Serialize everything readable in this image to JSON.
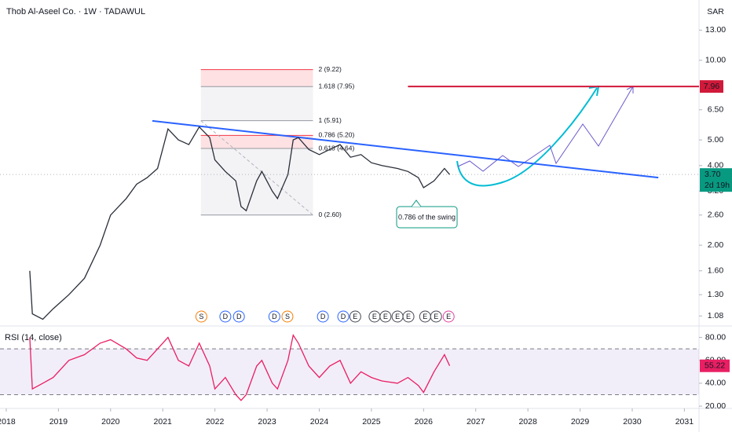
{
  "chart_data": [
    {
      "type": "line",
      "title": "Thob Al-Aseel Co. · 1W · TADAWUL",
      "currency": "SAR",
      "log_scale": true,
      "grid": false,
      "color": "#2a2e39",
      "x": [
        2018.45,
        2018.5,
        2018.7,
        2018.9,
        2019.2,
        2019.5,
        2019.8,
        2020.0,
        2020.3,
        2020.5,
        2020.7,
        2020.9,
        2021.1,
        2021.3,
        2021.5,
        2021.7,
        2021.9,
        2022.0,
        2022.2,
        2022.4,
        2022.5,
        2022.6,
        2022.8,
        2022.9,
        2023.1,
        2023.2,
        2023.4,
        2023.5,
        2023.6,
        2023.8,
        2024.0,
        2024.2,
        2024.4,
        2024.6,
        2024.8,
        2025.0,
        2025.2,
        2025.5,
        2025.7,
        2025.9,
        2026.0,
        2026.2,
        2026.4,
        2026.5
      ],
      "values": [
        1.6,
        1.1,
        1.05,
        1.15,
        1.3,
        1.5,
        2.0,
        2.6,
        3.0,
        3.4,
        3.6,
        3.9,
        5.5,
        5.0,
        4.8,
        5.6,
        5.1,
        4.2,
        3.8,
        3.5,
        2.8,
        2.7,
        3.5,
        3.8,
        3.2,
        3.0,
        3.7,
        5.0,
        5.1,
        4.6,
        4.4,
        4.6,
        4.8,
        4.3,
        4.4,
        4.1,
        4.0,
        3.9,
        3.8,
        3.6,
        3.3,
        3.5,
        3.9,
        3.7
      ],
      "xlim": [
        2017.88,
        2031.28
      ],
      "xticks": [
        2018,
        2019,
        2020,
        2021,
        2022,
        2023,
        2024,
        2025,
        2026,
        2027,
        2028,
        2029,
        2030,
        2031
      ],
      "ylim": [
        0.99,
        16.9
      ],
      "yticks": [
        {
          "value": 13,
          "label": "13.00"
        },
        {
          "value": 10,
          "label": "10.00"
        },
        {
          "value": 6.5,
          "label": "6.50"
        },
        {
          "value": 5,
          "label": "5.00"
        },
        {
          "value": 4,
          "label": "4.00"
        },
        {
          "value": 3.2,
          "label": "3.20"
        },
        {
          "value": 2.6,
          "label": "2.60"
        },
        {
          "value": 2,
          "label": "2.00"
        },
        {
          "value": 1.6,
          "label": "1.60"
        },
        {
          "value": 1.3,
          "label": "1.30"
        },
        {
          "value": 1.08,
          "label": "1.08"
        }
      ],
      "fib": {
        "x": [
          2021.73,
          2023.88
        ],
        "levels": [
          {
            "value": 9.22,
            "label": "2 (9.22)",
            "color": "#f23645"
          },
          {
            "value": 7.95,
            "label": "1.618 (7.95)",
            "color": "#9598a1"
          },
          {
            "value": 5.91,
            "label": "1 (5.91)",
            "color": "#9598a1"
          },
          {
            "value": 5.2,
            "label": "0.786 (5.20)",
            "color": "#f23645"
          },
          {
            "value": 4.64,
            "label": "0.618 (4.64)",
            "color": "#9598a1"
          },
          {
            "value": 2.6,
            "label": "0 (2.60)",
            "color": "#9598a1"
          }
        ]
      },
      "trendline": {
        "x": [
          2020.8,
          2030.5
        ],
        "values": [
          5.9,
          3.6
        ],
        "color": "#2962ff"
      },
      "target": {
        "x": 2025.7,
        "value": 7.96,
        "label": "7.96",
        "color": "#d1193a"
      },
      "last": {
        "value": 3.7,
        "label": "3.70",
        "countdown": "2d 19h",
        "color": "#089981"
      },
      "annotation": "0.786 of the swing",
      "events": [
        {
          "x": 2021.74,
          "label": "S",
          "color": "#f57c00"
        },
        {
          "x": 2022.2,
          "label": "D",
          "color": "#2962ff"
        },
        {
          "x": 2022.46,
          "label": "D",
          "color": "#2962ff"
        },
        {
          "x": 2023.14,
          "label": "D",
          "color": "#2962ff"
        },
        {
          "x": 2023.39,
          "label": "S",
          "color": "#f57c00"
        },
        {
          "x": 2024.07,
          "label": "D",
          "color": "#2962ff"
        },
        {
          "x": 2024.46,
          "label": "D",
          "color": "#2962ff"
        },
        {
          "x": 2024.69,
          "label": "E",
          "color": "#434651"
        },
        {
          "x": 2025.06,
          "label": "E",
          "color": "#434651"
        },
        {
          "x": 2025.27,
          "label": "E",
          "color": "#434651"
        },
        {
          "x": 2025.5,
          "label": "E",
          "color": "#434651"
        },
        {
          "x": 2025.71,
          "label": "E",
          "color": "#434651"
        },
        {
          "x": 2026.03,
          "label": "E",
          "color": "#434651"
        },
        {
          "x": 2026.24,
          "label": "E",
          "color": "#434651"
        },
        {
          "x": 2026.48,
          "label": "E",
          "color": "#e040a0"
        }
      ]
    },
    {
      "type": "line",
      "title": "RSI (14, close)",
      "color": "#e91e63",
      "band": [
        30,
        70
      ],
      "x": [
        2018.45,
        2018.5,
        2018.7,
        2018.9,
        2019.2,
        2019.5,
        2019.8,
        2020.0,
        2020.3,
        2020.5,
        2020.7,
        2020.9,
        2021.1,
        2021.3,
        2021.5,
        2021.7,
        2021.9,
        2022.0,
        2022.2,
        2022.4,
        2022.5,
        2022.6,
        2022.8,
        2022.9,
        2023.1,
        2023.2,
        2023.4,
        2023.5,
        2023.6,
        2023.8,
        2024.0,
        2024.2,
        2024.4,
        2024.6,
        2024.8,
        2025.0,
        2025.2,
        2025.5,
        2025.7,
        2025.9,
        2026.0,
        2026.2,
        2026.4,
        2026.5
      ],
      "values": [
        80,
        35,
        40,
        45,
        60,
        65,
        75,
        78,
        70,
        62,
        60,
        70,
        80,
        60,
        55,
        75,
        55,
        35,
        45,
        30,
        25,
        30,
        55,
        60,
        40,
        35,
        60,
        82,
        75,
        55,
        45,
        55,
        60,
        40,
        50,
        45,
        42,
        40,
        45,
        38,
        32,
        50,
        65,
        55.22
      ],
      "ylim": [
        18,
        90
      ],
      "yticks": [
        {
          "value": 80,
          "label": "80.00"
        },
        {
          "value": 60,
          "label": "60.00"
        },
        {
          "value": 40,
          "label": "40.00"
        },
        {
          "value": 20,
          "label": "20.00"
        }
      ],
      "last": {
        "value": 55.22,
        "label": "55.22"
      }
    }
  ]
}
